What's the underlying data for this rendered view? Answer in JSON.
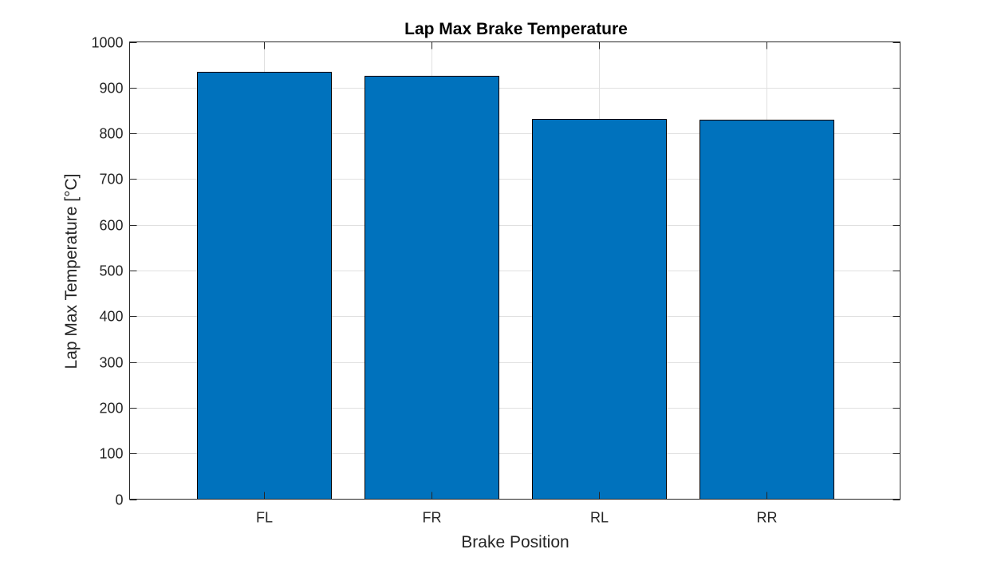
{
  "chart_data": {
    "type": "bar",
    "title": "Lap Max Brake Temperature",
    "xlabel": "Brake Position",
    "ylabel": "Lap Max Temperature [°C]",
    "categories": [
      "FL",
      "FR",
      "RL",
      "RR"
    ],
    "values": [
      935,
      926,
      832,
      830
    ],
    "ylim": [
      0,
      1000
    ],
    "yticks": [
      "0",
      "100",
      "200",
      "300",
      "400",
      "500",
      "600",
      "700",
      "800",
      "900",
      "1000"
    ],
    "grid": true,
    "legend": "none",
    "colors": {
      "bar_fill": "#0072BD",
      "bar_edge": "#000000",
      "grid": "#e0e0e0",
      "axis": "#262626"
    }
  }
}
